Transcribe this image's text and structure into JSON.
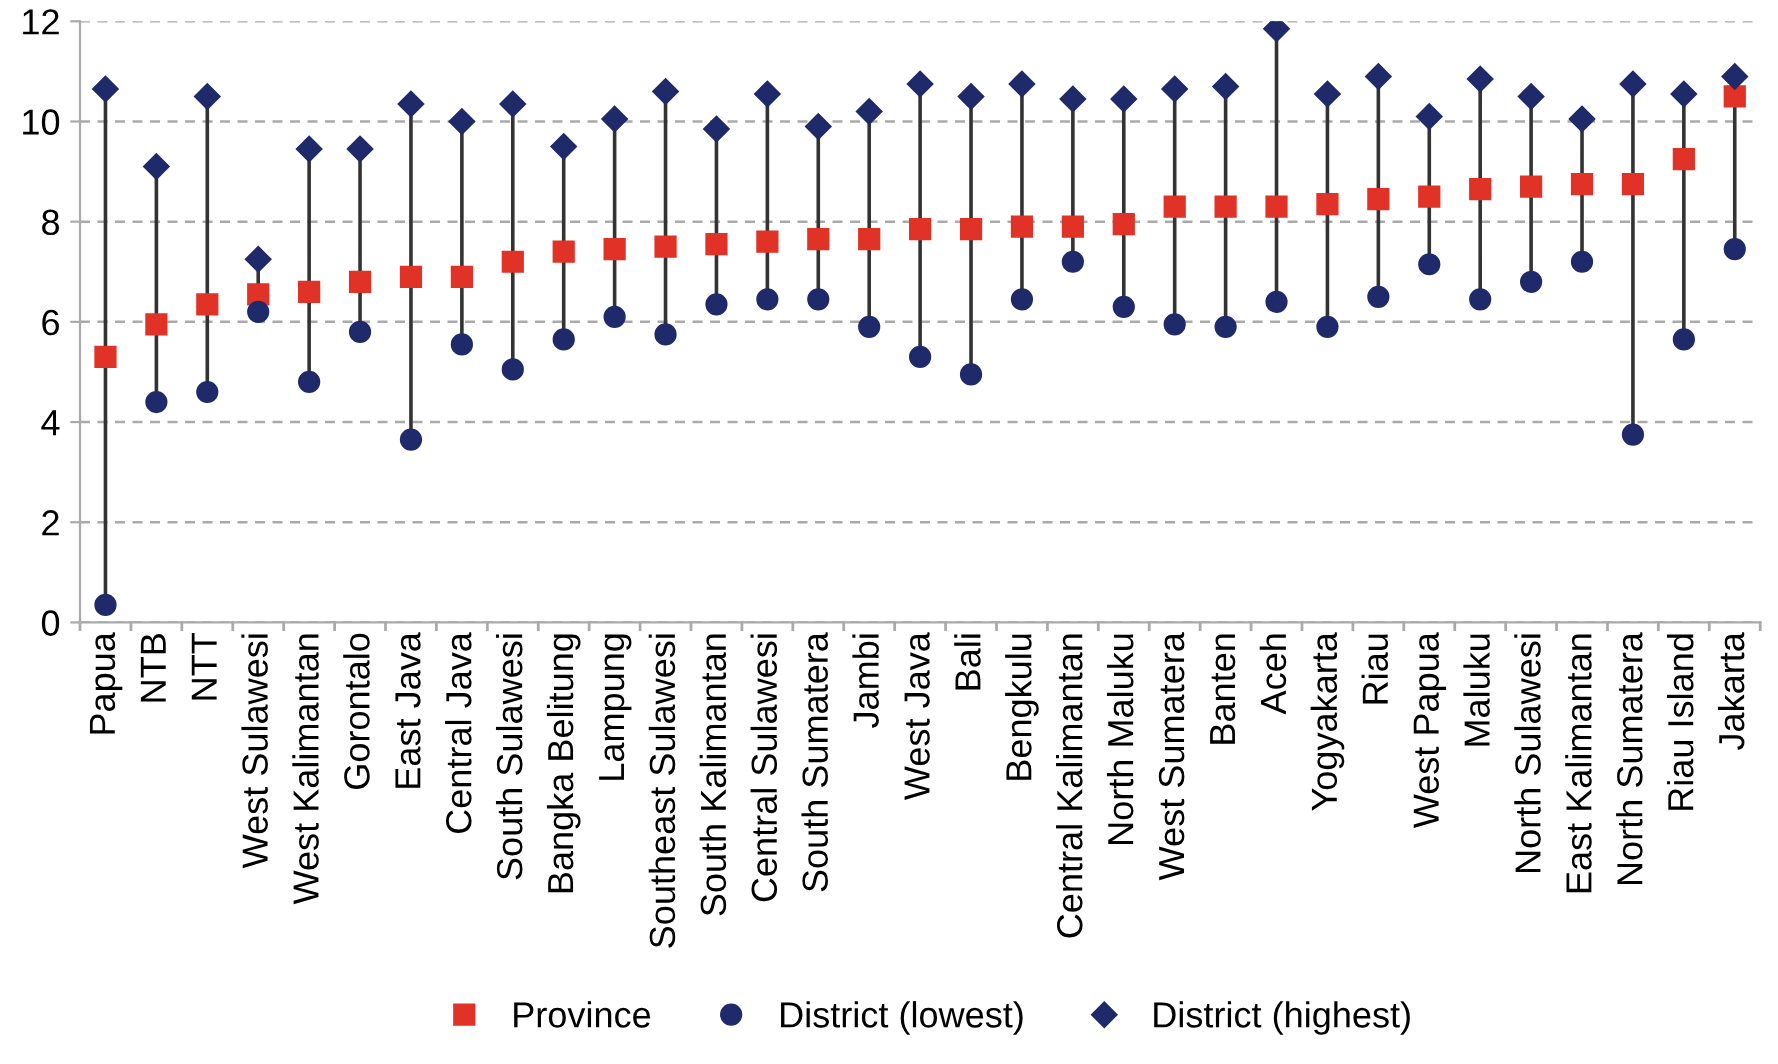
{
  "chart_data": {
    "type": "scatter",
    "categories": [
      "Papua",
      "NTB",
      "NTT",
      "West Sulawesi",
      "West Kalimantan",
      "Gorontalo",
      "East Java",
      "Central Java",
      "South Sulawesi",
      "Bangka Belitung",
      "Lampung",
      "Southeast Sulawesi",
      "South Kalimantan",
      "Central Sulawesi",
      "South Sumatera",
      "Jambi",
      "West Java",
      "Bali",
      "Bengkulu",
      "Central Kalimantan",
      "North Maluku",
      "West Sumatera",
      "Banten",
      "Aceh",
      "Yogyakarta",
      "Riau",
      "West Papua",
      "Maluku",
      "North Sulawesi",
      "East Kalimantan",
      "North Sumatera",
      "Riau Island",
      "Jakarta"
    ],
    "series": [
      {
        "name": "Province",
        "color": "#e03226",
        "marker": "square",
        "values": [
          5.3,
          5.95,
          6.35,
          6.55,
          6.6,
          6.8,
          6.9,
          6.9,
          7.2,
          7.4,
          7.45,
          7.5,
          7.55,
          7.6,
          7.65,
          7.65,
          7.85,
          7.85,
          7.9,
          7.9,
          7.95,
          8.3,
          8.3,
          8.3,
          8.35,
          8.45,
          8.5,
          8.65,
          8.7,
          8.75,
          8.75,
          9.25,
          10.5
        ]
      },
      {
        "name": "District (lowest)",
        "color": "#1f2a6b",
        "marker": "circle",
        "values": [
          0.35,
          4.4,
          4.6,
          6.2,
          4.8,
          5.8,
          3.65,
          5.55,
          5.05,
          5.65,
          6.1,
          5.75,
          6.35,
          6.45,
          6.45,
          5.9,
          5.3,
          4.95,
          6.45,
          7.2,
          6.3,
          5.95,
          5.9,
          6.4,
          5.9,
          6.5,
          7.15,
          6.45,
          6.8,
          7.2,
          3.75,
          5.65,
          7.45
        ]
      },
      {
        "name": "District (highest)",
        "color": "#1f2a6b",
        "marker": "diamond",
        "values": [
          10.65,
          9.1,
          10.5,
          7.25,
          9.45,
          9.45,
          10.35,
          10.0,
          10.35,
          9.5,
          10.05,
          10.6,
          9.85,
          10.55,
          9.9,
          10.2,
          10.75,
          10.5,
          10.75,
          10.45,
          10.45,
          10.65,
          10.7,
          11.85,
          10.55,
          10.9,
          10.1,
          10.85,
          10.5,
          10.05,
          10.75,
          10.55,
          10.9
        ]
      }
    ],
    "ylim": [
      0,
      12
    ],
    "yticks": [
      0,
      2,
      4,
      6,
      8,
      10,
      12
    ],
    "grid": "y",
    "legend": "bottom"
  }
}
